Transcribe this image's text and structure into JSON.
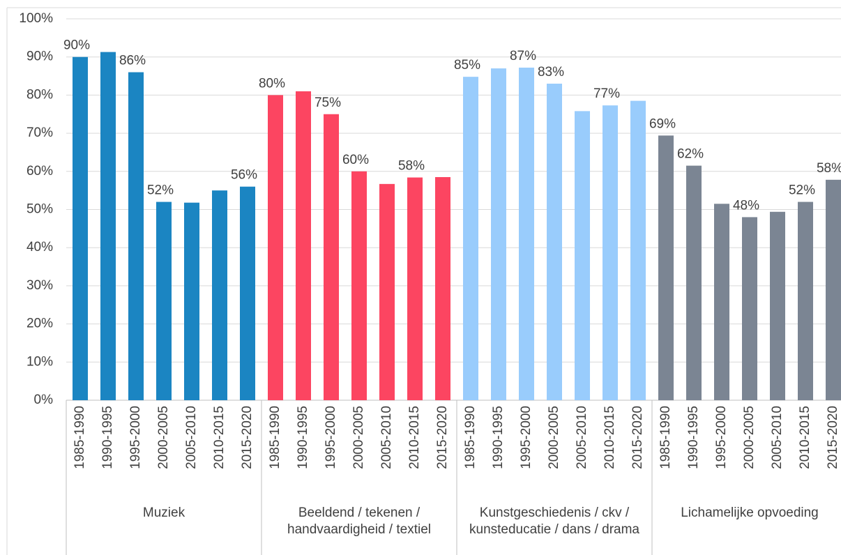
{
  "chart_data": {
    "type": "bar",
    "categories": [
      "1985-1990",
      "1990-1995",
      "1995-2000",
      "2000-2005",
      "2005-2010",
      "2010-2015",
      "2015-2020"
    ],
    "series": [
      {
        "name": "Muziek",
        "color": "#1b85c2",
        "values": [
          90,
          91.3,
          86,
          52,
          51.8,
          55,
          56
        ],
        "value_labels": [
          "90%",
          null,
          "86%",
          "52%",
          null,
          null,
          "56%"
        ]
      },
      {
        "name": "Beeldend / tekenen / handvaardigheid / textiel",
        "color": "#fc4561",
        "values": [
          80,
          81,
          75,
          60,
          56.7,
          58.4,
          58.5
        ],
        "value_labels": [
          "80%",
          null,
          "75%",
          "60%",
          null,
          "58%",
          null
        ]
      },
      {
        "name": "Kunstgeschiedenis / ckv / kunsteducatie / dans / drama",
        "color": "#99ccfc",
        "values": [
          84.8,
          87,
          87.2,
          83,
          75.8,
          77.3,
          78.5
        ],
        "value_labels": [
          "85%",
          null,
          "87%",
          "83%",
          null,
          "77%",
          null
        ]
      },
      {
        "name": "Lichamelijke opvoeding",
        "color": "#7b8593",
        "values": [
          69.4,
          61.5,
          51.5,
          48,
          49.4,
          52,
          57.8
        ],
        "value_labels": [
          "69%",
          "62%",
          null,
          "48%",
          null,
          "52%",
          "58%"
        ]
      }
    ],
    "ylim": [
      0,
      100
    ],
    "yticks": [
      {
        "value": 0,
        "label": "0%"
      },
      {
        "value": 10,
        "label": "10%"
      },
      {
        "value": 20,
        "label": "20%"
      },
      {
        "value": 30,
        "label": "30%"
      },
      {
        "value": 40,
        "label": "40%"
      },
      {
        "value": 50,
        "label": "50%"
      },
      {
        "value": 60,
        "label": "60%"
      },
      {
        "value": 70,
        "label": "70%"
      },
      {
        "value": 80,
        "label": "80%"
      },
      {
        "value": 90,
        "label": "90%"
      },
      {
        "value": 100,
        "label": "100%"
      }
    ],
    "grid": true
  }
}
